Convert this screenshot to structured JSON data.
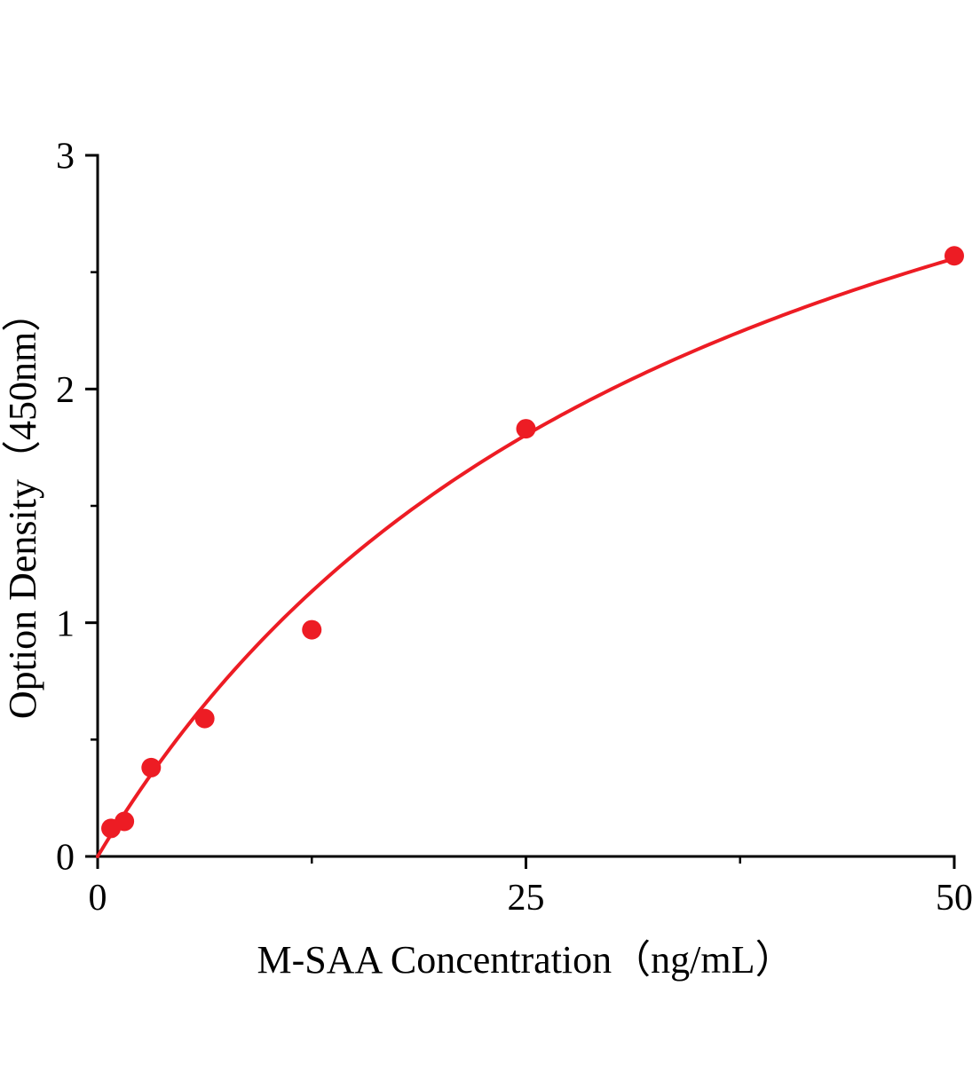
{
  "chart_data": {
    "type": "scatter",
    "title": "",
    "xlabel": "M-SAA Concentration（ng/mL）",
    "ylabel": "Option Density（450nm）",
    "x": [
      0.78,
      1.56,
      3.125,
      6.25,
      12.5,
      25,
      50
    ],
    "y": [
      0.12,
      0.15,
      0.38,
      0.59,
      0.97,
      1.83,
      2.57
    ],
    "xlim": [
      0,
      50
    ],
    "ylim": [
      0,
      3
    ],
    "x_ticks": [
      0,
      25,
      50
    ],
    "y_ticks": [
      0,
      1,
      2,
      3
    ],
    "x_minor_ticks": [
      12.5,
      37.5
    ],
    "y_minor_ticks": [
      0.5,
      1.5,
      2.5
    ],
    "fit": {
      "type": "michaelis_menten",
      "vmax": 4.4,
      "km": 36
    },
    "colors": {
      "point": "#ed1c24",
      "curve": "#ed1c24",
      "axis": "#000000"
    },
    "legend": "none",
    "grid": "off"
  }
}
